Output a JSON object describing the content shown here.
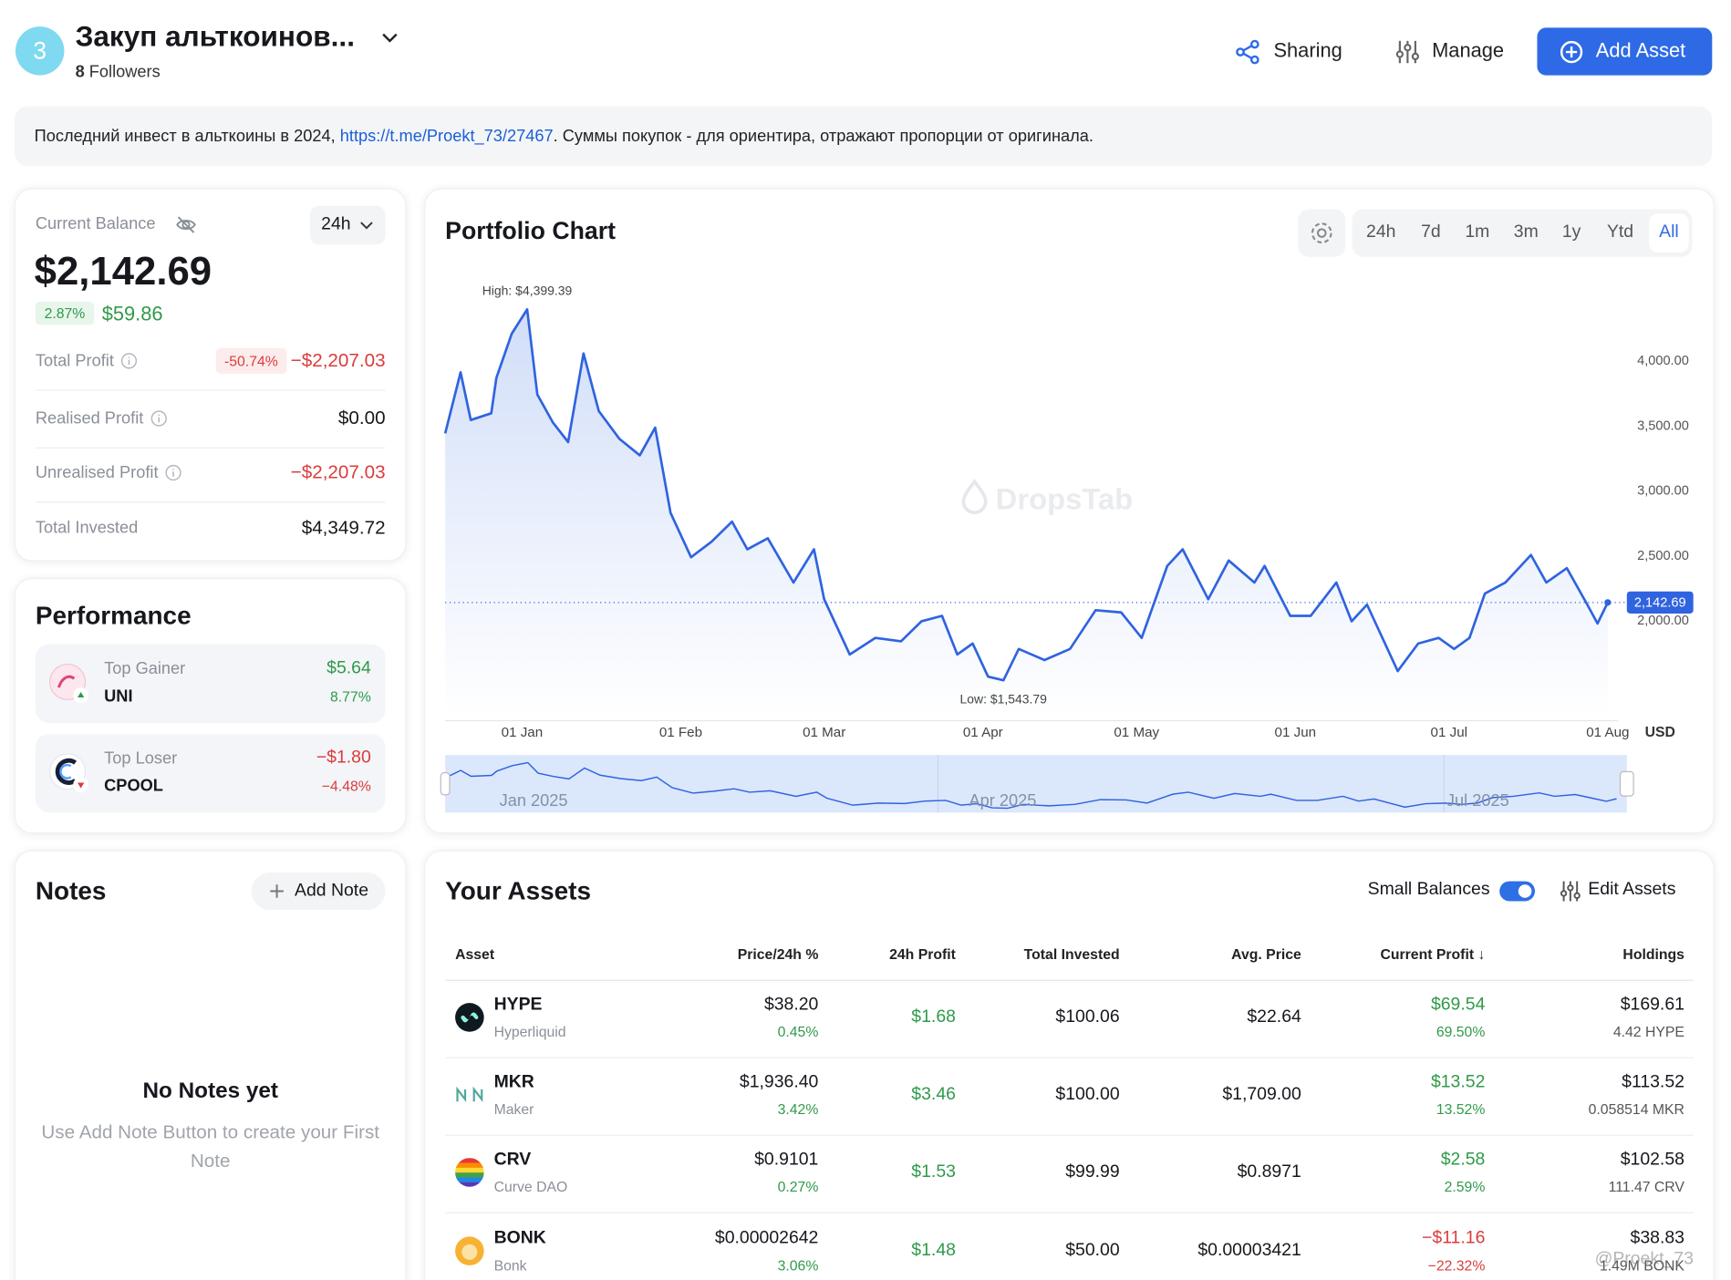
{
  "header": {
    "avatar": "3",
    "title": "Закуп альткоинов...",
    "followers_count": "8",
    "followers_label": "Followers",
    "buttons": {
      "sharing": "Sharing",
      "manage": "Manage",
      "add_asset": "Add Asset"
    }
  },
  "description": {
    "before": "Последний инвест в альткоины в 2024, ",
    "link": "https://t.me/Proekt_73/27467",
    "after": ". Суммы покупок - для ориентира, отражают пропорции от оригинала."
  },
  "balance": {
    "label": "Current Balance",
    "period": "24h",
    "value": "$2,142.69",
    "change_pct": "2.87%",
    "change": "$59.86",
    "rows": [
      {
        "label": "Total Profit",
        "info": true,
        "badge": "-50.74%",
        "value": "−$2,207.03"
      },
      {
        "label": "Realised Profit",
        "info": true,
        "value": "$0.00"
      },
      {
        "label": "Unrealised Profit",
        "info": true,
        "value": "−$2,207.03"
      },
      {
        "label": "Total Invested",
        "value": "$4,349.72"
      }
    ]
  },
  "performance": {
    "title": "Performance",
    "gainer": {
      "label": "Top Gainer",
      "symbol": "UNI",
      "value": "$5.64",
      "pct": "8.77%"
    },
    "loser": {
      "label": "Top Loser",
      "symbol": "CPOOL",
      "value": "−$1.80",
      "pct": "−4.48%"
    }
  },
  "notes": {
    "title": "Notes",
    "button": "Add Note",
    "empty_title": "No Notes yet",
    "empty_text": "Use Add Note Button to create your First Note"
  },
  "chart_data": {
    "type": "line",
    "title": "Portfolio Chart",
    "tabs": [
      "24h",
      "7d",
      "1m",
      "3m",
      "1y",
      "Ytd",
      "All"
    ],
    "active_tab": "All",
    "watermark": "DropsTab",
    "currency": "USD",
    "color": "#2f63e0",
    "grid": false,
    "annotations": {
      "high": "High: $4,399.39",
      "low": "Low: $1,543.79"
    },
    "current": {
      "value": 2142.69,
      "label": "2,142.69"
    },
    "navigator_labels": [
      "Jan 2025",
      "Apr 2025",
      "Jul 2025"
    ],
    "x": [
      "2024-12-17",
      "2024-12-20",
      "2024-12-22",
      "2024-12-26",
      "2024-12-27",
      "2024-12-30",
      "2025-01-02",
      "2025-01-04",
      "2025-01-07",
      "2025-01-10",
      "2025-01-13",
      "2025-01-16",
      "2025-01-20",
      "2025-01-24",
      "2025-01-27",
      "2025-01-30",
      "2025-02-03",
      "2025-02-07",
      "2025-02-11",
      "2025-02-14",
      "2025-02-18",
      "2025-02-23",
      "2025-02-27",
      "2025-03-01",
      "2025-03-06",
      "2025-03-11",
      "2025-03-16",
      "2025-03-20",
      "2025-03-24",
      "2025-03-27",
      "2025-03-30",
      "2025-04-02",
      "2025-04-05",
      "2025-04-08",
      "2025-04-13",
      "2025-04-18",
      "2025-04-23",
      "2025-04-28",
      "2025-05-02",
      "2025-05-07",
      "2025-05-10",
      "2025-05-15",
      "2025-05-19",
      "2025-05-24",
      "2025-05-26",
      "2025-05-31",
      "2025-06-04",
      "2025-06-09",
      "2025-06-12",
      "2025-06-15",
      "2025-06-21",
      "2025-06-25",
      "2025-06-29",
      "2025-07-02",
      "2025-07-05",
      "2025-07-08",
      "2025-07-12",
      "2025-07-17",
      "2025-07-20",
      "2025-07-24",
      "2025-07-28",
      "2025-07-30",
      "2025-08-01"
    ],
    "values": [
      3446,
      3915,
      3548,
      3600,
      3872,
      4213,
      4399.39,
      3744,
      3531,
      3378,
      4060,
      3617,
      3404,
      3276,
      3489,
      2833,
      2492,
      2611,
      2765,
      2552,
      2637,
      2296,
      2552,
      2168,
      1742,
      1870,
      1844,
      1998,
      2040,
      1742,
      1827,
      1572,
      1543.79,
      1785,
      1700,
      1785,
      2083,
      2066,
      1870,
      2424,
      2552,
      2168,
      2466,
      2296,
      2424,
      2040,
      2040,
      2296,
      1998,
      2126,
      1614,
      1827,
      1870,
      1785,
      1870,
      2211,
      2296,
      2509,
      2296,
      2407,
      2126,
      1981,
      2142.69
    ],
    "xlim": [
      "2024-12-17",
      "2025-08-03"
    ],
    "xticks": [
      {
        "value": "2025-01-01",
        "label": "01 Jan"
      },
      {
        "value": "2025-02-01",
        "label": "01 Feb"
      },
      {
        "value": "2025-03-01",
        "label": "01 Mar"
      },
      {
        "value": "2025-04-01",
        "label": "01 Apr"
      },
      {
        "value": "2025-05-01",
        "label": "01 May"
      },
      {
        "value": "2025-06-01",
        "label": "01 Jun"
      },
      {
        "value": "2025-07-01",
        "label": "01 Jul"
      },
      {
        "value": "2025-08-01",
        "label": "01 Aug"
      }
    ],
    "ylim": [
      1275,
      4600
    ],
    "yticks": [
      {
        "value": 2000,
        "label": "2,000.00"
      },
      {
        "value": 2500,
        "label": "2,500.00"
      },
      {
        "value": 3000,
        "label": "3,000.00"
      },
      {
        "value": 3500,
        "label": "3,500.00"
      },
      {
        "value": 4000,
        "label": "4,000.00"
      }
    ]
  },
  "assets": {
    "title": "Your Assets",
    "small_balances": "Small Balances",
    "edit": "Edit Assets",
    "columns": [
      "Asset",
      "Price/24h %",
      "24h Profit",
      "Total Invested",
      "Avg. Price",
      "Current Profit ↓",
      "Holdings"
    ],
    "rows": [
      {
        "symbol": "HYPE",
        "name": "Hyperliquid",
        "price": "$38.20",
        "change": "0.45%",
        "profit_24h": "$1.68",
        "invested": "$100.06",
        "avg_price": "$22.64",
        "profit": "$69.54",
        "profit_pct": "69.50%",
        "holdings": "$169.61",
        "quantity": "4.42 HYPE"
      },
      {
        "symbol": "MKR",
        "name": "Maker",
        "price": "$1,936.40",
        "change": "3.42%",
        "profit_24h": "$3.46",
        "invested": "$100.00",
        "avg_price": "$1,709.00",
        "profit": "$13.52",
        "profit_pct": "13.52%",
        "holdings": "$113.52",
        "quantity": "0.058514 MKR"
      },
      {
        "symbol": "CRV",
        "name": "Curve DAO",
        "price": "$0.9101",
        "change": "0.27%",
        "profit_24h": "$1.53",
        "invested": "$99.99",
        "avg_price": "$0.8971",
        "profit": "$2.58",
        "profit_pct": "2.59%",
        "holdings": "$102.58",
        "quantity": "111.47 CRV"
      },
      {
        "symbol": "BONK",
        "name": "Bonk",
        "price": "$0.00002642",
        "change": "3.06%",
        "profit_24h": "$1.48",
        "invested": "$50.00",
        "avg_price": "$0.00003421",
        "profit": "−$11.16",
        "profit_pct": "−22.32%",
        "holdings": "$38.83",
        "quantity": "1.49M BONK"
      }
    ]
  },
  "overlay_watermark": "@Proekt_73"
}
